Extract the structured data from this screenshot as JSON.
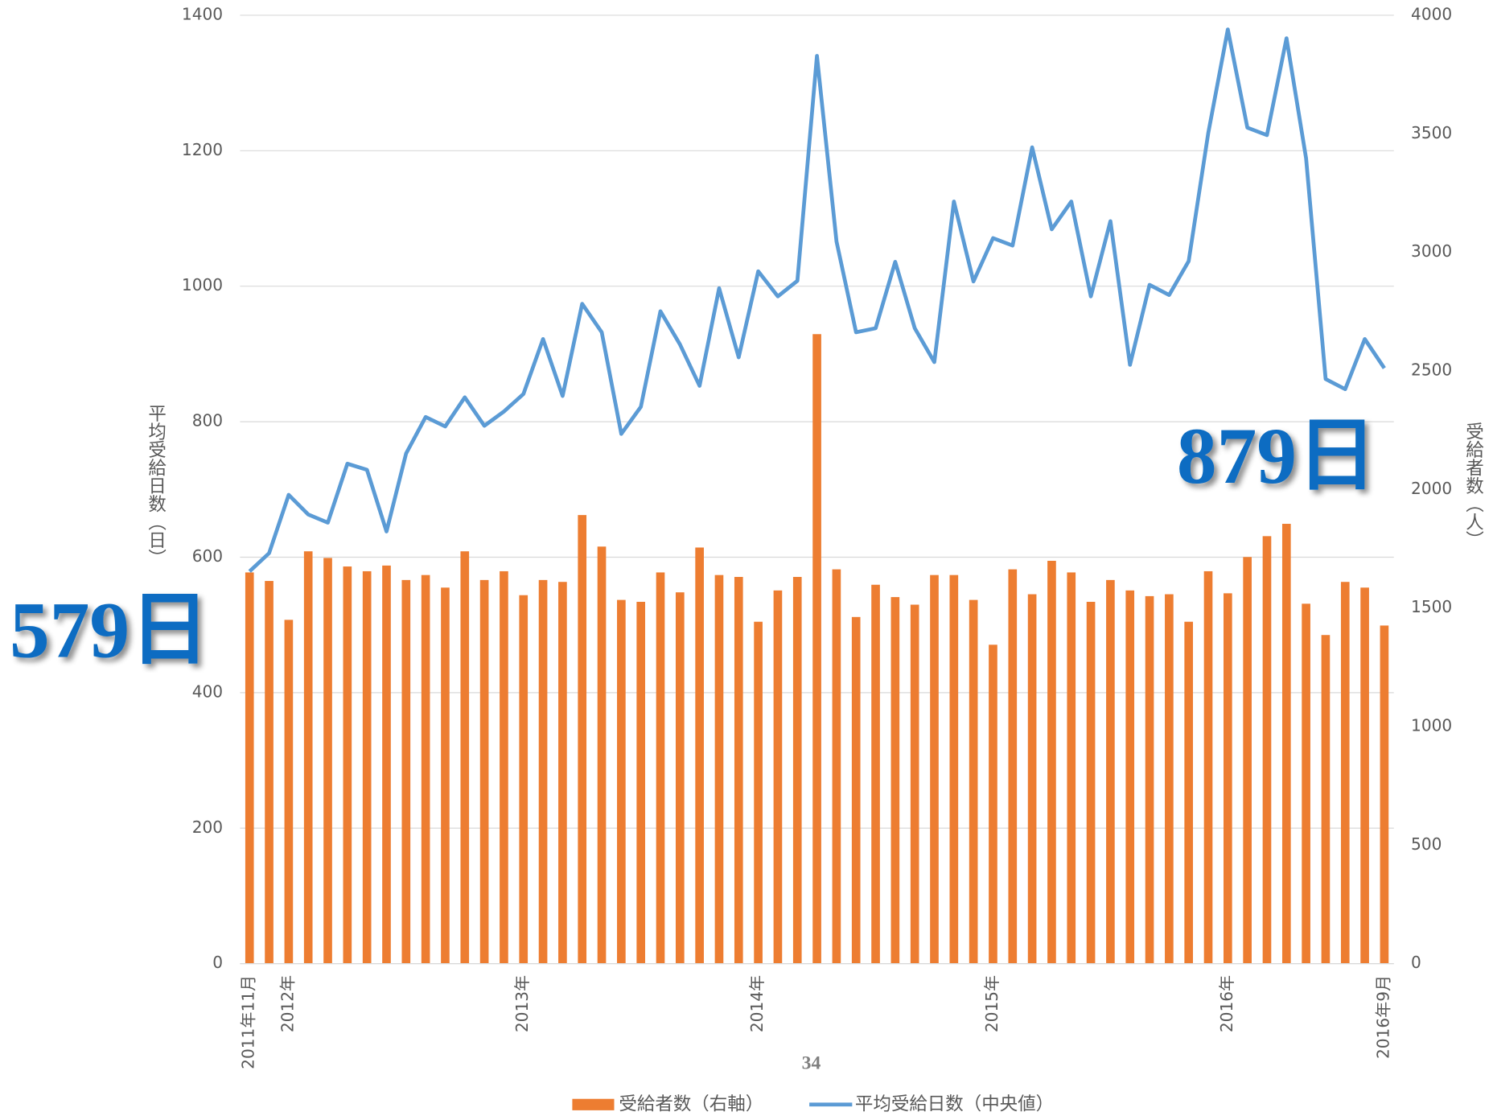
{
  "chart_data": {
    "type": "bar",
    "categories": [
      "2011年11月",
      null,
      "2012年",
      null,
      null,
      null,
      null,
      null,
      null,
      null,
      null,
      null,
      null,
      null,
      "2013年",
      null,
      null,
      null,
      null,
      null,
      null,
      null,
      null,
      null,
      null,
      null,
      "2014年",
      null,
      null,
      null,
      null,
      null,
      null,
      null,
      null,
      null,
      null,
      null,
      "2015年",
      null,
      null,
      null,
      null,
      null,
      null,
      null,
      null,
      null,
      null,
      null,
      "2016年",
      null,
      null,
      null,
      null,
      null,
      null,
      null,
      "2016年9月"
    ],
    "series": [
      {
        "name": "受給者数（右軸）",
        "type": "bar",
        "axis": "y2",
        "color": "#ed7d31",
        "values": [
          1650,
          1614,
          1450,
          1739,
          1711,
          1675,
          1655,
          1679,
          1618,
          1639,
          1586,
          1739,
          1618,
          1655,
          1554,
          1618,
          1610,
          1892,
          1759,
          1534,
          1526,
          1650,
          1566,
          1755,
          1639,
          1631,
          1442,
          1574,
          1631,
          2655,
          1663,
          1462,
          1598,
          1546,
          1514,
          1639,
          1639,
          1534,
          1345,
          1663,
          1558,
          1699,
          1650,
          1526,
          1618,
          1574,
          1550,
          1558,
          1442,
          1655,
          1562,
          1715,
          1803,
          1855,
          1518,
          1386,
          1610,
          1586,
          1426
        ]
      },
      {
        "name": "平均受給日数（中央値）",
        "type": "line",
        "color": "#5b9bd5",
        "values": [
          579,
          606,
          692,
          663,
          651,
          738,
          729,
          638,
          753,
          807,
          793,
          836,
          794,
          815,
          841,
          922,
          838,
          974,
          932,
          782,
          822,
          963,
          914,
          853,
          997,
          895,
          1022,
          985,
          1008,
          1340,
          1066,
          932,
          938,
          1036,
          938,
          888,
          1125,
          1007,
          1071,
          1060,
          1205,
          1084,
          1125,
          985,
          1096,
          884,
          1002,
          987,
          1037,
          1226,
          1379,
          1234,
          1223,
          1366,
          1189,
          863,
          848,
          922,
          879
        ]
      }
    ],
    "ylabel": "平均受給日数（日）",
    "y2label": "受給者数（人）",
    "ylim": [
      0,
      1400
    ],
    "yticks": [
      0,
      200,
      400,
      600,
      800,
      1000,
      1200,
      1400
    ],
    "y2lim": [
      0,
      4000
    ],
    "y2ticks": [
      0,
      500,
      1000,
      1500,
      2000,
      2500,
      3000,
      3500,
      4000
    ],
    "grid": true,
    "legend": "bottom",
    "annotations": [
      "579日",
      "879日"
    ],
    "page_number": "34"
  }
}
